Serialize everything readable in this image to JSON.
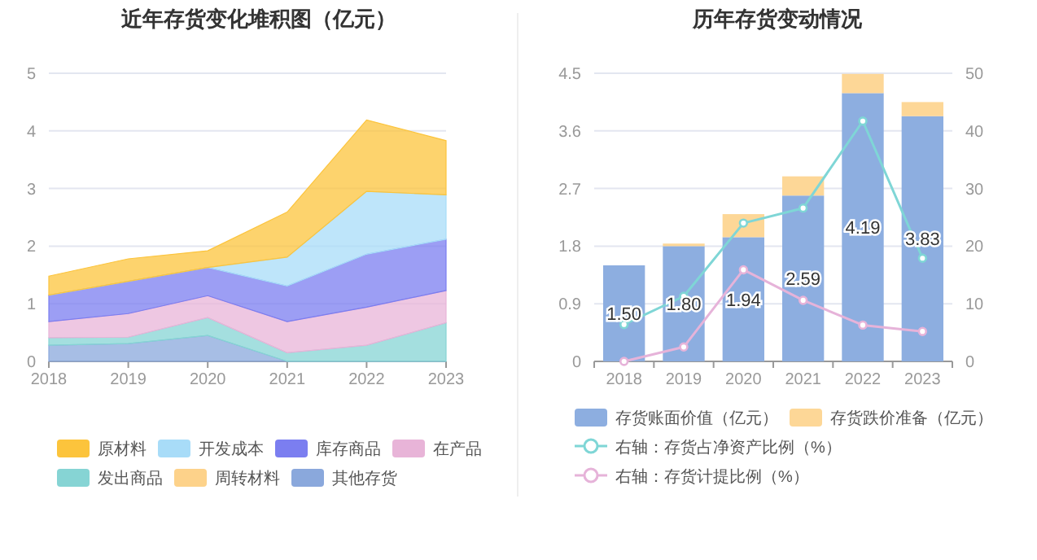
{
  "chart_data": [
    {
      "type": "area",
      "stacked": true,
      "title": "近年存货变化堆积图（亿元）",
      "categories": [
        "2018",
        "2019",
        "2020",
        "2021",
        "2022",
        "2023"
      ],
      "ylim": [
        0,
        5
      ],
      "yticks": [
        0,
        1,
        2,
        3,
        4,
        5
      ],
      "grid": "y",
      "legend": "bottom",
      "series": [
        {
          "name": "其他存货",
          "color": "#8aa8dc",
          "values": [
            0.28,
            0.31,
            0.45,
            0,
            0,
            0
          ]
        },
        {
          "name": "周转材料",
          "color": "#fdd28a",
          "values": [
            null,
            null,
            null,
            null,
            null,
            null
          ]
        },
        {
          "name": "发出商品",
          "color": "#86d4d4",
          "values": [
            0.13,
            0.11,
            0.31,
            0.15,
            0.28,
            0.67
          ]
        },
        {
          "name": "在产品",
          "color": "#e8b4d8",
          "values": [
            0.28,
            0.41,
            0.38,
            0.54,
            0.66,
            0.56
          ]
        },
        {
          "name": "库存商品",
          "color": "#7b7ef0",
          "values": [
            0.46,
            0.56,
            0.49,
            0.62,
            0.92,
            0.89
          ]
        },
        {
          "name": "开发成本",
          "color": "#a8dcf8",
          "values": [
            0,
            0,
            0,
            0.5,
            1.09,
            0.77
          ]
        },
        {
          "name": "原材料",
          "color": "#fcc43c",
          "values": [
            0.33,
            0.39,
            0.29,
            0.78,
            1.24,
            0.94
          ]
        }
      ]
    },
    {
      "type": "bar",
      "stacked": true,
      "title": "历年存货变动情况",
      "categories": [
        "2018",
        "2019",
        "2020",
        "2021",
        "2022",
        "2023"
      ],
      "ylim": [
        0,
        4.5
      ],
      "yticks": [
        0,
        0.9,
        1.8,
        2.7,
        3.6,
        4.5
      ],
      "y2lim": [
        0,
        50
      ],
      "y2ticks": [
        0,
        10,
        20,
        30,
        40,
        50
      ],
      "grid": "y",
      "legend": "bottom",
      "marker": "circle",
      "series": [
        {
          "name": "存货账面价值（亿元）",
          "color": "#8daee0",
          "values": [
            1.5,
            1.8,
            1.94,
            2.59,
            4.19,
            3.83
          ],
          "value_labels": [
            "1.50",
            "1.80",
            "1.94",
            "2.59",
            "4.19",
            "3.83"
          ]
        },
        {
          "name": "存货跌价准备（亿元）",
          "color": "#fdd797",
          "values": [
            0,
            0.04,
            0.36,
            0.3,
            0.3,
            0.22
          ]
        },
        {
          "name": "右轴：存货占净资产比例（%）",
          "type": "line",
          "axis": "y2",
          "color": "#7fd6d6",
          "values": [
            6.4,
            11.3,
            24.0,
            26.6,
            41.7,
            17.9
          ]
        },
        {
          "name": "右轴：存货计提比例（%）",
          "type": "line",
          "axis": "y2",
          "color": "#e6b3d9",
          "values": [
            0,
            2.5,
            15.9,
            10.6,
            6.3,
            5.2
          ]
        }
      ]
    }
  ]
}
